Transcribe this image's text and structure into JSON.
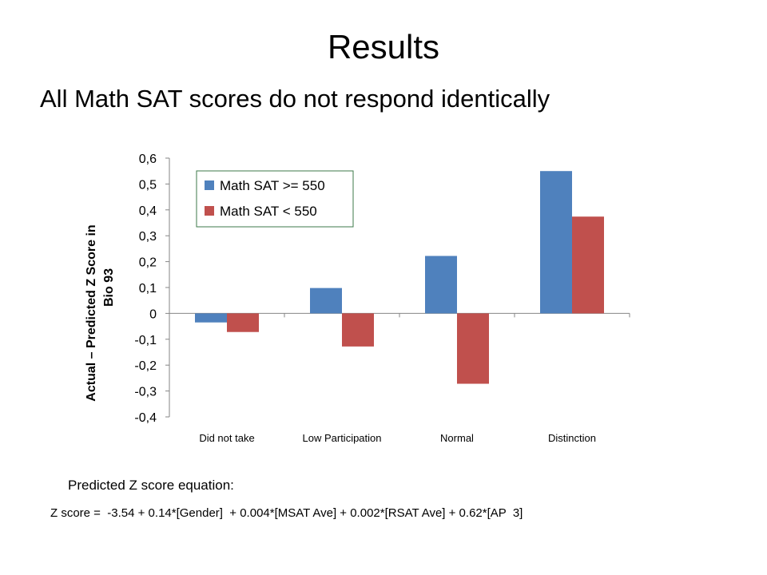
{
  "slide": {
    "title": "Results",
    "subtitle": "All Math SAT scores do not respond identically"
  },
  "equation": {
    "label": "Predicted Z score equation:",
    "text": "Z score =  -3.54 + 0.14*[Gender]  + 0.004*[MSAT Ave] + 0.002*[RSAT Ave] + 0.62*[AP  3]"
  },
  "chart_data": {
    "type": "bar",
    "title": "",
    "xlabel": "",
    "ylabel": "Actual – Predicted Z Score in Bio 93",
    "categories": [
      "Did not take",
      "Low Participation",
      "Normal",
      "Distinction"
    ],
    "series": [
      {
        "name": "Math SAT >= 550",
        "color": "#4f81bd",
        "values": [
          -0.035,
          0.098,
          0.222,
          0.55
        ]
      },
      {
        "name": "Math SAT < 550",
        "color": "#c0504d",
        "values": [
          -0.072,
          -0.128,
          -0.272,
          0.374
        ]
      }
    ],
    "ylim": [
      -0.4,
      0.6
    ],
    "yticks": [
      -0.4,
      -0.3,
      -0.2,
      -0.1,
      0,
      0.1,
      0.2,
      0.3,
      0.4,
      0.5,
      0.6
    ],
    "ytick_labels": [
      "-0,4",
      "-0,3",
      "-0,2",
      "-0,1",
      "0",
      "0,1",
      "0,2",
      "0,3",
      "0,4",
      "0,5",
      "0,6"
    ],
    "grid": false,
    "legend_position": "top-left"
  }
}
